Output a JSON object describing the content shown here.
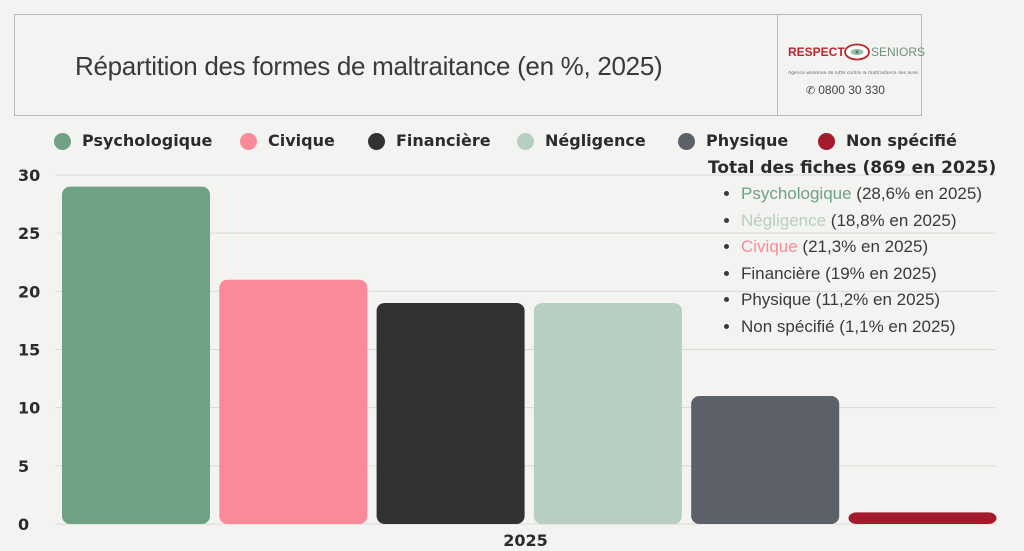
{
  "title": "Répartition des formes de maltraitance (en %, 2025)",
  "logo": {
    "brand_left": "RESPECT",
    "brand_right": "SENIORS",
    "tagline": "Agence wallonne de lutte contre la maltraitance des aînés",
    "phone": "0800 30 330",
    "phone_icon": "phone-icon"
  },
  "colors": {
    "Psychologique": "#6fa184",
    "Civique": "#fa8a99",
    "Financière": "#323232",
    "Négligence": "#b8cec2",
    "Physique": "#5c6068",
    "Non spécifié": "#a51b2d"
  },
  "notes": {
    "title": "Total des fiches (869 en 2025)",
    "items": [
      {
        "name": "Psychologique",
        "detail": " (28,6% en 2025)",
        "color_class": "c-psy"
      },
      {
        "name": "Négligence",
        "detail": " (18,8% en 2025)",
        "color_class": "c-neg"
      },
      {
        "name": "Civique",
        "detail": " (21,3% en 2025)",
        "color_class": "c-civ"
      },
      {
        "name": "Financière",
        "detail": " (19% en 2025)",
        "color_class": ""
      },
      {
        "name": "Physique",
        "detail": " (11,2% en 2025)",
        "color_class": ""
      },
      {
        "name": "Non spécifié",
        "detail": " (1,1% en 2025)",
        "color_class": ""
      }
    ]
  },
  "chart_data": {
    "type": "bar",
    "categories": [
      "2025"
    ],
    "series": [
      {
        "name": "Psychologique",
        "values": [
          29
        ]
      },
      {
        "name": "Civique",
        "values": [
          21
        ]
      },
      {
        "name": "Financière",
        "values": [
          19
        ]
      },
      {
        "name": "Négligence",
        "values": [
          19
        ]
      },
      {
        "name": "Physique",
        "values": [
          11
        ]
      },
      {
        "name": "Non spécifié",
        "values": [
          1
        ]
      }
    ],
    "ylim": [
      0,
      30
    ],
    "yticks": [
      0,
      5,
      10,
      15,
      20,
      25,
      30
    ],
    "grid": true,
    "legend_position": "top"
  }
}
